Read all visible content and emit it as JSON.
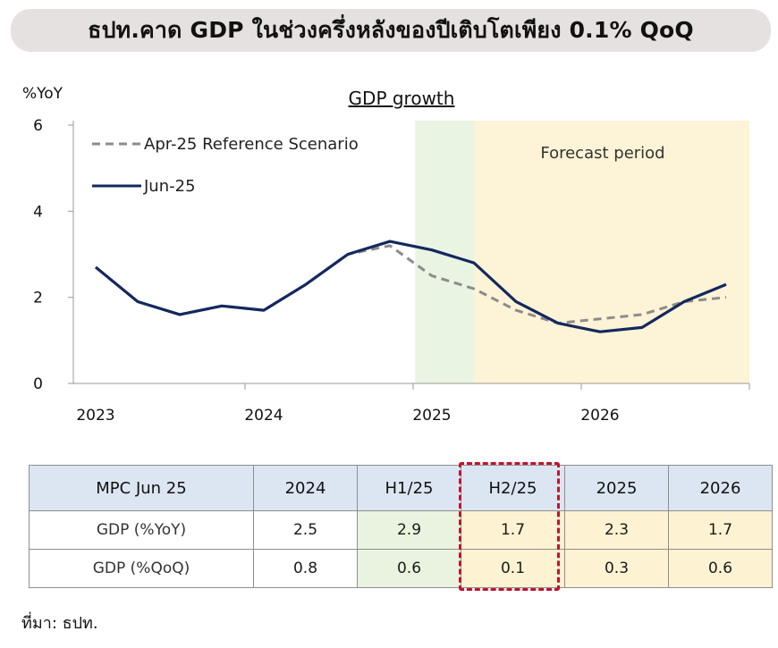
{
  "banner": {
    "title": "ธปท.คาด GDP ในช่วงครึ่งหลังของปีเติบโตเพียง  0.1% QoQ"
  },
  "chart_data": {
    "type": "line",
    "title": "GDP growth",
    "ylabel": "%YoY",
    "ylim": [
      0,
      6
    ],
    "yticks": [
      "0",
      "2",
      "4",
      "6"
    ],
    "xlim": [
      2023,
      2027
    ],
    "xticks": [
      {
        "label": "2023",
        "x": 2023
      },
      {
        "label": "2024",
        "x": 2024
      },
      {
        "label": "2025",
        "x": 2025
      },
      {
        "label": "2026",
        "x": 2026
      }
    ],
    "shaded": [
      {
        "from": 2024.9,
        "to": 2025.25,
        "color": "#e9f4e3",
        "label": ""
      },
      {
        "from": 2025.25,
        "to": 2027,
        "color": "#fdf3d6",
        "label": "Forecast period"
      }
    ],
    "series": [
      {
        "name": "Apr-25 Reference Scenario",
        "style": "dashed",
        "color": "#8c8c8c",
        "x": [
          2023.0,
          2023.25,
          2023.5,
          2023.75,
          2024.0,
          2024.25,
          2024.5,
          2024.75,
          2025.0,
          2025.25,
          2025.5,
          2025.75,
          2026.0,
          2026.25,
          2026.5,
          2026.75
        ],
        "y": [
          2.7,
          1.9,
          1.6,
          1.8,
          1.7,
          2.3,
          3.0,
          3.2,
          2.5,
          2.2,
          1.7,
          1.4,
          1.5,
          1.6,
          1.9,
          2.0
        ]
      },
      {
        "name": "Jun-25",
        "style": "solid",
        "color": "#14285f",
        "x": [
          2023.0,
          2023.25,
          2023.5,
          2023.75,
          2024.0,
          2024.25,
          2024.5,
          2024.75,
          2025.0,
          2025.25,
          2025.5,
          2025.75,
          2026.0,
          2026.25,
          2026.5,
          2026.75
        ],
        "y": [
          2.7,
          1.9,
          1.6,
          1.8,
          1.7,
          2.3,
          3.0,
          3.3,
          3.1,
          2.8,
          1.9,
          1.4,
          1.2,
          1.3,
          1.9,
          2.3
        ]
      }
    ]
  },
  "table": {
    "header": [
      "MPC Jun 25",
      "2024",
      "H1/25",
      "H2/25",
      "2025",
      "2026"
    ],
    "rows": [
      {
        "label": "GDP (%YoY)",
        "values": [
          "2.5",
          "2.9",
          "1.7",
          "2.3",
          "1.7"
        ]
      },
      {
        "label": "GDP (%QoQ)",
        "values": [
          "0.8",
          "0.6",
          "0.1",
          "0.3",
          "0.6"
        ]
      }
    ]
  },
  "source": "ที่มา: ธปท."
}
